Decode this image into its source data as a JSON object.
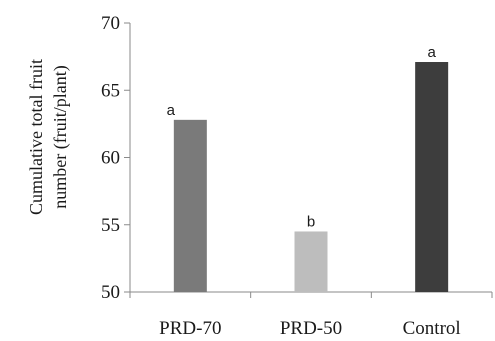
{
  "chart_data": {
    "type": "bar",
    "categories": [
      "PRD-70",
      "PRD-50",
      "Control"
    ],
    "values": [
      62.8,
      54.5,
      67.1
    ],
    "letters": [
      "a",
      "b",
      "a"
    ],
    "colors": [
      "#7a7a7a",
      "#bdbdbd",
      "#3d3d3d"
    ],
    "title": "",
    "xlabel": "",
    "ylabel": [
      "Cumulative total fruit",
      "number (fruit/plant)"
    ],
    "ylim": [
      50,
      70
    ],
    "yticks": [
      50,
      55,
      60,
      65,
      70
    ],
    "grid": false,
    "legend": "none"
  }
}
